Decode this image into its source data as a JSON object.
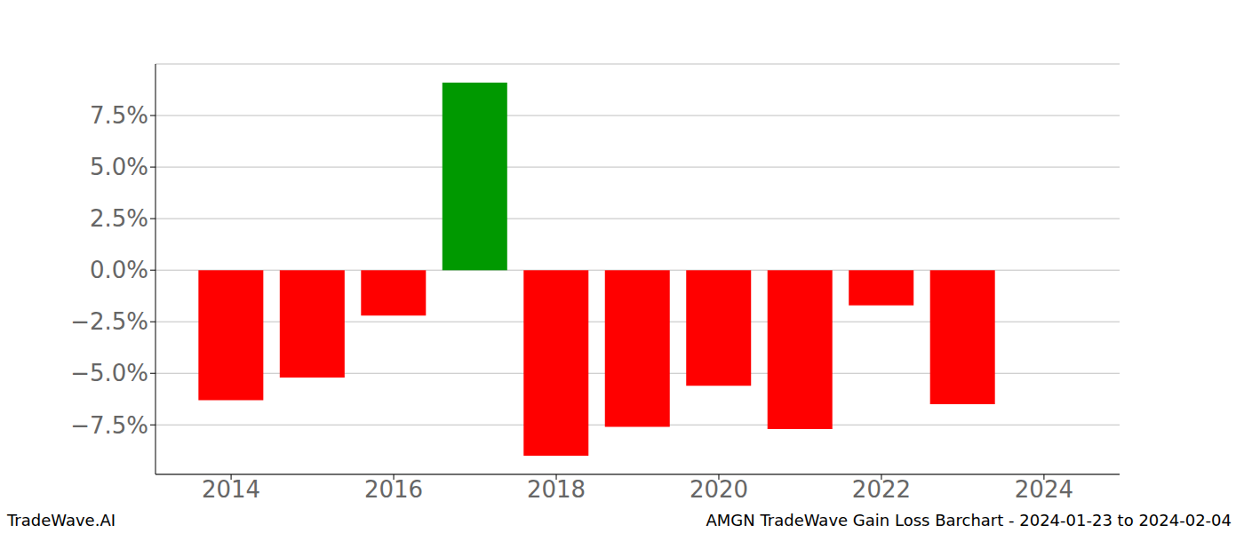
{
  "chart_data": {
    "type": "bar",
    "title": "AMGN TradeWave Gain Loss Barchart - 2024-01-23 to 2024-02-04",
    "subtitle": "TradeWave.AI",
    "x": [
      2014,
      2015,
      2016,
      2017,
      2018,
      2019,
      2020,
      2021,
      2022,
      2023
    ],
    "values": [
      -6.3,
      -5.2,
      -2.2,
      9.1,
      -9.0,
      -7.6,
      -5.6,
      -7.7,
      -1.7,
      -6.5
    ],
    "colors": [
      "#ff0000",
      "#ff0000",
      "#ff0000",
      "#009900",
      "#ff0000",
      "#ff0000",
      "#ff0000",
      "#ff0000",
      "#ff0000",
      "#ff0000"
    ],
    "xlim": [
      2013.07,
      2024.93
    ],
    "xticks": [
      2014,
      2016,
      2018,
      2020,
      2022,
      2024
    ],
    "ylim": [
      -9.9,
      10.0
    ],
    "yticks": [
      {
        "value": -7.5,
        "label": "−7.5%"
      },
      {
        "value": -5,
        "label": "−5.0%"
      },
      {
        "value": -2.5,
        "label": "−2.5%"
      },
      {
        "value": 0,
        "label": "0.0%"
      },
      {
        "value": 2.5,
        "label": "2.5%"
      },
      {
        "value": 5,
        "label": "5.0%"
      },
      {
        "value": 7.5,
        "label": "7.5%"
      }
    ],
    "grid": true
  }
}
